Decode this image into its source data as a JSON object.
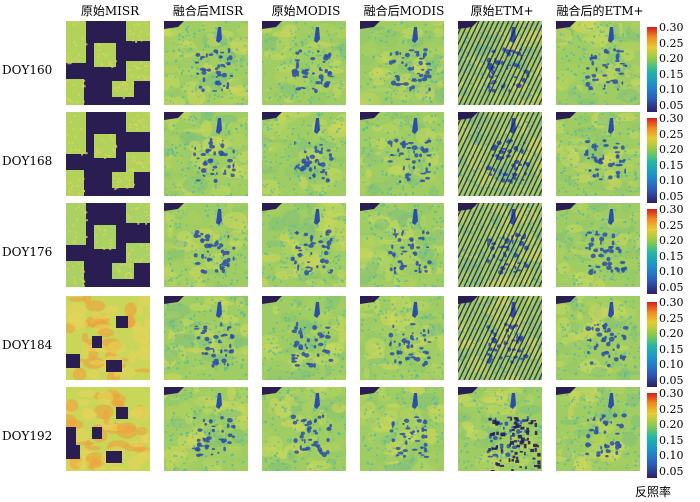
{
  "column_headers": [
    "原始MISR",
    "融合后MISR",
    "原始MODIS",
    "融合后MODIS",
    "原始ETM+",
    "融合后的ETM+"
  ],
  "row_labels": [
    "DOY160",
    "DOY168",
    "DOY176",
    "DOY184",
    "DOY192"
  ],
  "colorbar": {
    "ticks": [
      "0.30",
      "0.25",
      "0.20",
      "0.15",
      "0.10",
      "0.05"
    ],
    "unit_label": "反照率",
    "colors": [
      "#2d1f64",
      "#2e58b8",
      "#1d8fd0",
      "#22b7a5",
      "#8ccb4c",
      "#e7cc33",
      "#f38a20",
      "#d51d1d"
    ]
  },
  "palette": {
    "nodata": "#2a1d52",
    "base_green": "#9fcc63",
    "teal": "#4bb8a9",
    "water_blue": "#2b4ea8",
    "yellow": "#e6d35a",
    "orange": "#f0a03c"
  }
}
